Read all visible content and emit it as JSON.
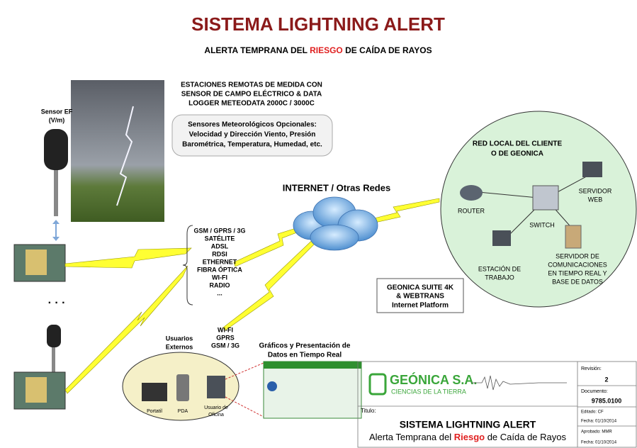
{
  "header": {
    "title": "SISTEMA LIGHTNING ALERT",
    "subtitle": [
      "ALERTA TEMPRANA DEL",
      "RIESGO",
      "DE CAÍDA DE RAYOS"
    ]
  },
  "sensor": [
    "Sensor EF",
    "(V/m)"
  ],
  "stations": [
    "ESTACIONES REMOTAS DE MEDIDA CON",
    "SENSOR DE CAMPO ELÉCTRICO & DATA",
    "LOGGER METEODATA 2000C / 3000C"
  ],
  "optional": [
    "Sensores Meteorológicos Opcionales:",
    "Velocidad y Dirección Viento, Presión",
    "Barométrica, Temperatura, Humedad, etc."
  ],
  "internet": "INTERNET / Otras Redes",
  "comms": [
    "GSM / GPRS / 3G",
    "SATÉLITE",
    "ADSL",
    "RDSI",
    "ETHERNET",
    "FIBRA ÓPTICA",
    "WI-FI",
    "RADIO",
    "..."
  ],
  "dots": "· · ·",
  "lan": {
    "title": [
      "RED LOCAL DEL CLIENTE",
      "O DE GEONICA"
    ],
    "router": "ROUTER",
    "switch": "SWITCH",
    "web": [
      "SERVIDOR",
      "WEB"
    ],
    "workstation": [
      "ESTACIÓN DE",
      "TRABAJO"
    ],
    "server": [
      "SERVIDOR DE",
      "COMUNICACIONES",
      "EN TIEMPO REAL Y",
      "BASE DE DATOS"
    ]
  },
  "suite": [
    "GEONICA SUITE 4K",
    "& WEBTRANS",
    "Internet Platform"
  ],
  "mobile": [
    "WI-FI",
    "GPRS",
    "GSM / 3G"
  ],
  "graphics": [
    "Gráficos y Presentación de",
    "Datos en Tiempo Real"
  ],
  "users": {
    "title": [
      "Usuarios",
      "Externos"
    ],
    "laptop": "Portatil",
    "pda": "PDA",
    "office": [
      "Usuario de",
      "Oficina"
    ]
  },
  "titleblock": {
    "company": "GEÓNICA S.A.",
    "tagline": "CIENCIAS DE LA TIERRA",
    "revision_label": "Revisión:",
    "revision": "2",
    "document_label": "Documento:",
    "document": "9785.0100",
    "title_label": "Titulo:",
    "title": "SISTEMA LIGHTNING ALERT",
    "subtitle": [
      "Alerta Temprana del",
      "Riesgo",
      "de Caída de Rayos"
    ],
    "edited": "Editado: CF",
    "edited_date": "Fecha: 01/10/2014",
    "approved": "Aprobado: MMR",
    "approved_date": "Fecha: 01/10/2014"
  }
}
